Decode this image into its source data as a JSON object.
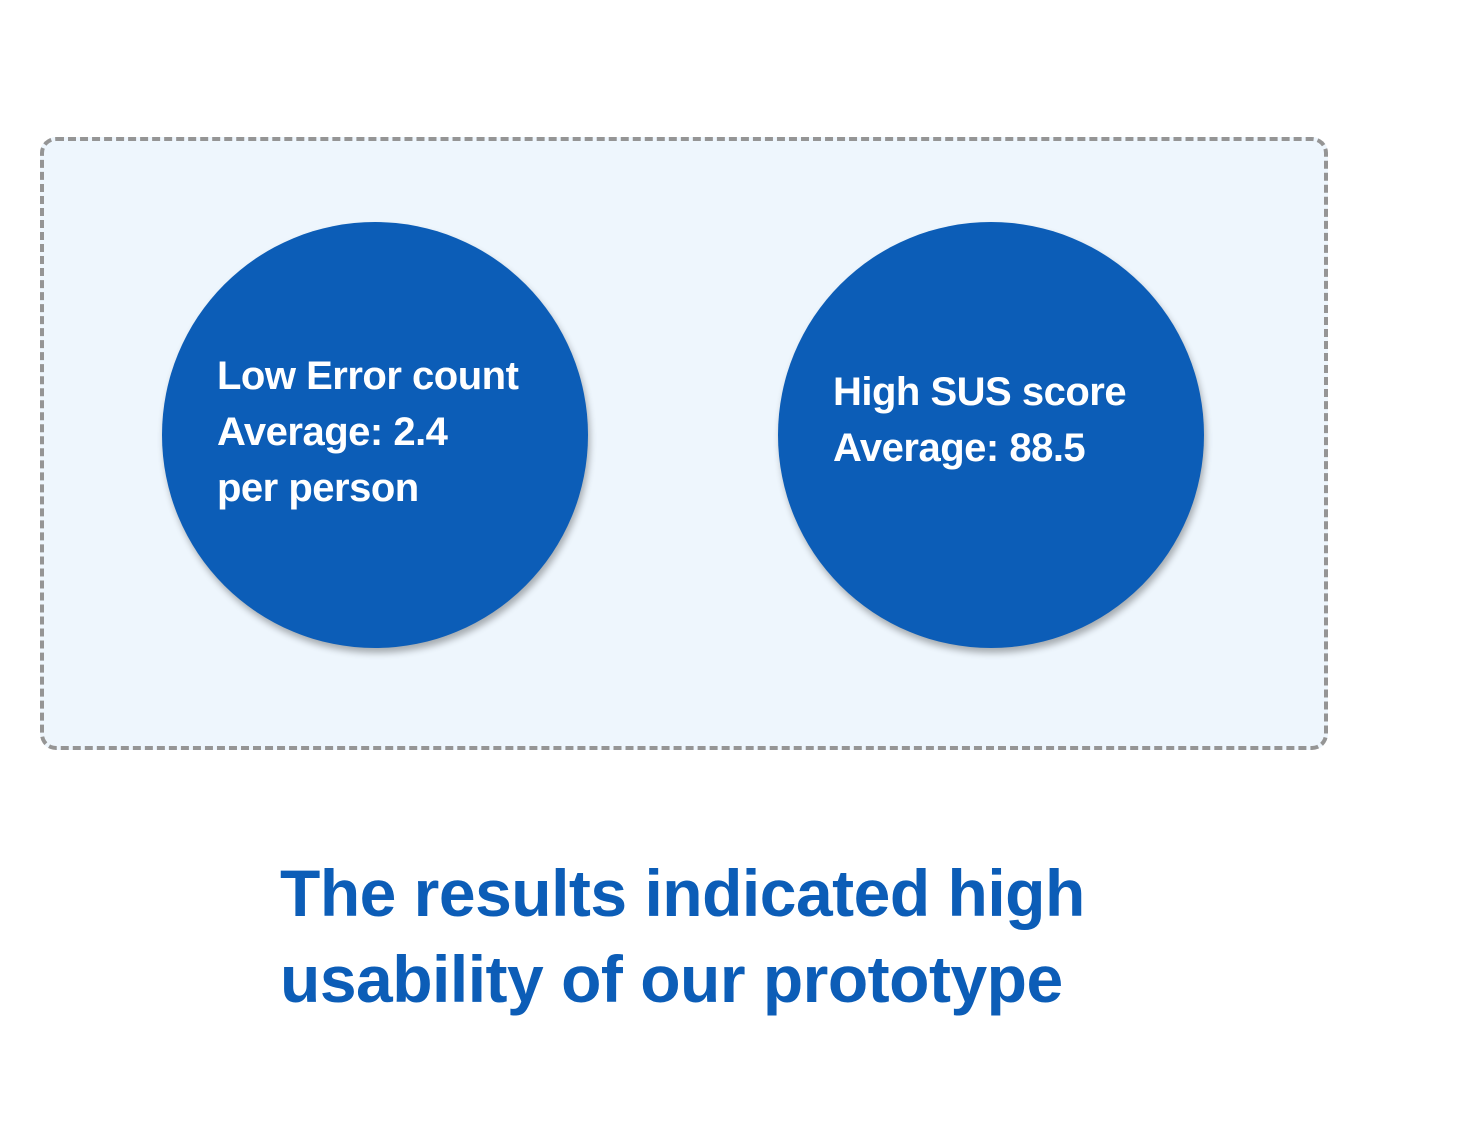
{
  "metrics": [
    {
      "lines": [
        "Low Error count",
        "Average: 2.4",
        "per person"
      ]
    },
    {
      "lines": [
        "High SUS score",
        "Average: 88.5"
      ]
    }
  ],
  "caption": {
    "lines": [
      "The results indicated high",
      "usability of our prototype"
    ]
  },
  "colors": {
    "primary": "#0c5db7",
    "panel_background": "#eef6fd",
    "panel_border": "#959595",
    "circle_text": "#ffffff"
  }
}
